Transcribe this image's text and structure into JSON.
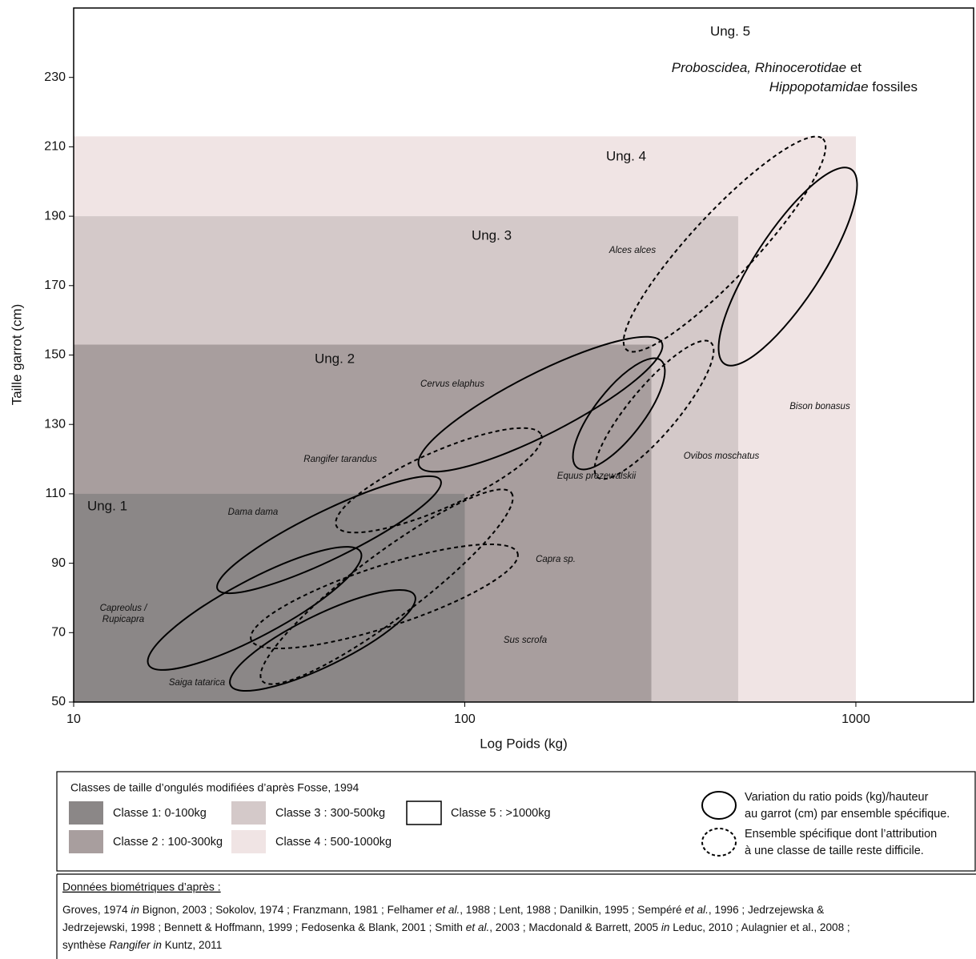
{
  "chart_data": {
    "type": "class-regions",
    "xlabel": "Log Poids (kg)",
    "ylabel": "Taille garrot (cm)",
    "xscale": "log",
    "xlim": [
      10,
      2000
    ],
    "ylim": [
      50,
      250
    ],
    "xticks": [
      10,
      100,
      1000
    ],
    "yticks": [
      50,
      70,
      90,
      110,
      130,
      150,
      170,
      190,
      210,
      230
    ],
    "legend_title": "Classes de taille d’ongulés modifiées d’après Fosse, 1994",
    "series": [
      {
        "name": "Classe 1: 0-100kg",
        "color": "#8b8787",
        "x": 100,
        "y": 110
      },
      {
        "name": "Classe 2 : 100-300kg",
        "color": "#a89e9e",
        "x": 300,
        "y": 153
      },
      {
        "name": "Classe 3 : 300-500kg",
        "color": "#d4c9c9",
        "x": 500,
        "y": 190
      },
      {
        "name": "Classe 4 : 500-1000kg",
        "color": "#f0e4e4",
        "x": 1000,
        "y": 213
      },
      {
        "name": "Classe 5 : >1000kg",
        "color": "#ffffff"
      }
    ],
    "annotations": [
      "Ung. 1",
      "Ung. 2",
      "Ung. 3",
      "Ung. 4",
      "Ung. 5"
    ],
    "note": [
      [
        {
          "text": "Proboscidea, Rhinocerotidae",
          "italic": true
        },
        " et"
      ],
      [
        {
          "text": "Hippopotamidae",
          "italic": true
        },
        " fossiles"
      ]
    ],
    "species": [
      "Alces alces",
      "Cervus elaphus",
      "Rangifer tarandus",
      "Dama dama",
      [
        "Capreolus /",
        "Rupicapra"
      ],
      "Saiga tatarica",
      "Equus prezewalskii",
      "Capra sp.",
      "Sus scrofa",
      "Ovibos moschatus",
      "Bison bonasus"
    ],
    "ellipse_legend": [
      [
        "Variation du ratio poids (kg)/hauteur",
        "au garrot (cm) par ensemble spécifique."
      ],
      [
        "Ensemble spécifique dont l’attribution",
        "à une classe de taille reste difficile."
      ]
    ]
  },
  "sources": {
    "title": "Données biométriques d’après :",
    "lines": [
      [
        "Groves, 1974 ",
        {
          "text": "in",
          "italic": true
        },
        " Bignon, 2003 ; Sokolov, 1974 ; Franzmann, 1981 ; Felhamer ",
        {
          "text": "et al.",
          "italic": true
        },
        ", 1988 ; Lent, 1988 ; Danilkin, 1995 ; Sempéré ",
        {
          "text": "et al.",
          "italic": true
        },
        ", 1996 ; Jedrzejewska &"
      ],
      [
        "Jedrzejewski, 1998 ; Bennett & Hoffmann, 1999 ; Fedosenka & Blank, 2001 ; Smith ",
        {
          "text": "et al.",
          "italic": true
        },
        ", 2003 ; Macdonald & Barrett, 2005 ",
        {
          "text": "in",
          "italic": true
        },
        " Leduc, 2010 ; Aulagnier et al., 2008 ;"
      ],
      [
        "synthèse ",
        {
          "text": "Rangifer",
          "italic": true
        },
        " ",
        {
          "text": "in",
          "italic": true
        },
        " Kuntz, 2011"
      ]
    ]
  }
}
